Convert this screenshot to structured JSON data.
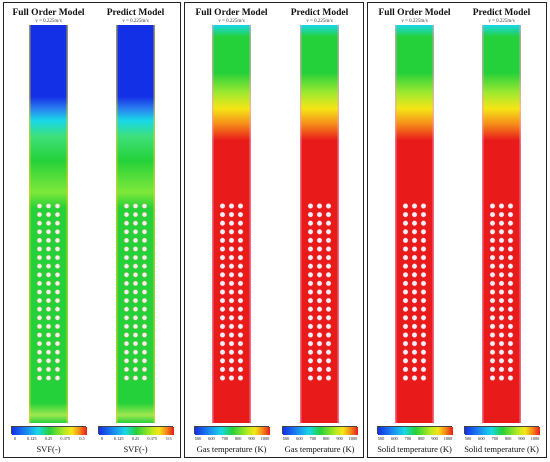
{
  "panels": [
    {
      "title": "Full Order Model",
      "subtitle": "v = 0.225m/s",
      "colorbar_label": "SVF(-)",
      "ticks": [
        "0",
        "0.125",
        "0.25",
        "0.375",
        "0.5"
      ]
    },
    {
      "title": "Predict Model",
      "subtitle": "v = 0.225m/s",
      "colorbar_label": "SVF(-)",
      "ticks": [
        "0",
        "0.125",
        "0.25",
        "0.375",
        "0.5"
      ]
    },
    {
      "title": "Full Order Model",
      "subtitle": "v = 0.225m/s",
      "colorbar_label": "Gas  temperature (K)",
      "ticks": [
        "500",
        "600",
        "700",
        "800",
        "900",
        "1000"
      ]
    },
    {
      "title": "Predict Model",
      "subtitle": "v = 0.225m/s",
      "colorbar_label": "Gas  temperature (K)",
      "ticks": [
        "500",
        "600",
        "700",
        "800",
        "900",
        "1000"
      ]
    },
    {
      "title": "Full Order Model",
      "subtitle": "v = 0.225m/s",
      "colorbar_label": "Solid  temperature (K)",
      "ticks": [
        "500",
        "600",
        "700",
        "800",
        "900",
        "1000"
      ]
    },
    {
      "title": "Predict Model",
      "subtitle": "v = 0.225m/s",
      "colorbar_label": "Solid  temperature (K)",
      "ticks": [
        "500",
        "600",
        "700",
        "800",
        "900",
        "1000"
      ]
    }
  ],
  "fields": {
    "svf": "solid volume fraction contour",
    "gas": "gas temperature contour",
    "solid": "solid temperature contour"
  },
  "colors": {
    "blue": "#1430e6",
    "cyan": "#18d8e8",
    "green": "#25d13a",
    "yellow": "#f5e616",
    "orange": "#f58a1a",
    "red": "#e81a1a",
    "tube_circle": "#f0eef8"
  }
}
